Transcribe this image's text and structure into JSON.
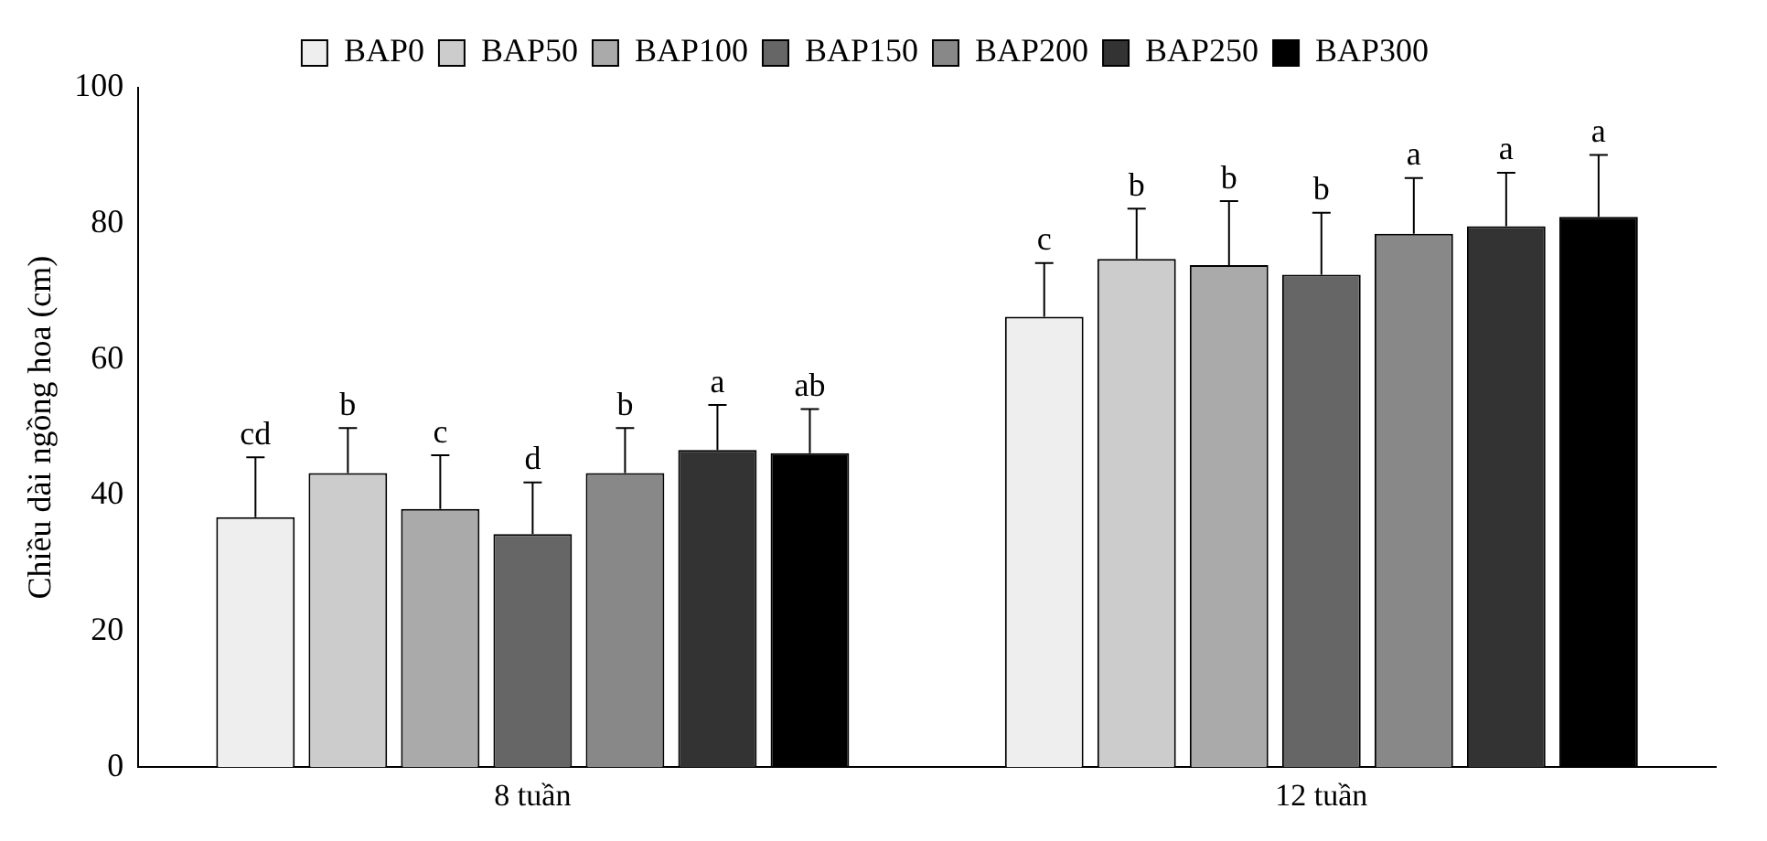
{
  "chart_data": {
    "type": "bar",
    "ylabel": "Chiều dài ngồng hoa (cm)",
    "categories": [
      "8 tuần",
      "12 tuần"
    ],
    "ylim": [
      0,
      100
    ],
    "yticks": [
      0,
      20,
      40,
      60,
      80,
      100
    ],
    "grid": false,
    "legend": "top",
    "series": [
      {
        "name": "BAP0",
        "color": "#eeeeee",
        "values": [
          36.8,
          66.3
        ],
        "errors": [
          [
            36.8,
            45.6
          ],
          [
            66.3,
            74.2
          ]
        ],
        "value_labels": [
          "cd",
          "c"
        ]
      },
      {
        "name": "BAP50",
        "color": "#cccccc",
        "values": [
          43.3,
          74.8
        ],
        "errors": [
          [
            43.3,
            49.9
          ],
          [
            74.8,
            82.2
          ]
        ],
        "value_labels": [
          "b",
          "b"
        ]
      },
      {
        "name": "BAP100",
        "color": "#aaaaaa",
        "values": [
          38,
          73.9
        ],
        "errors": [
          [
            38,
            45.9
          ],
          [
            73.9,
            83.3
          ]
        ],
        "value_labels": [
          "c",
          "b"
        ]
      },
      {
        "name": "BAP150",
        "color": "#666666",
        "values": [
          34.3,
          72.5
        ],
        "errors": [
          [
            34.3,
            41.9
          ],
          [
            72.5,
            81.6
          ]
        ],
        "value_labels": [
          "d",
          "b"
        ]
      },
      {
        "name": "BAP200",
        "color": "#888888",
        "values": [
          43.3,
          78.5
        ],
        "errors": [
          [
            43.3,
            49.9
          ],
          [
            78.5,
            86.7
          ]
        ],
        "value_labels": [
          "b",
          "a"
        ]
      },
      {
        "name": "BAP250",
        "color": "#333333",
        "values": [
          46.7,
          79.6
        ],
        "errors": [
          [
            46.7,
            53.3
          ],
          [
            79.6,
            87.5
          ]
        ],
        "value_labels": [
          "a",
          "a"
        ]
      },
      {
        "name": "BAP300",
        "color": "#000000",
        "values": [
          46.2,
          81
        ],
        "errors": [
          [
            46.2,
            52.7
          ],
          [
            81,
            90.1
          ]
        ],
        "value_labels": [
          "ab",
          "a"
        ]
      }
    ]
  }
}
